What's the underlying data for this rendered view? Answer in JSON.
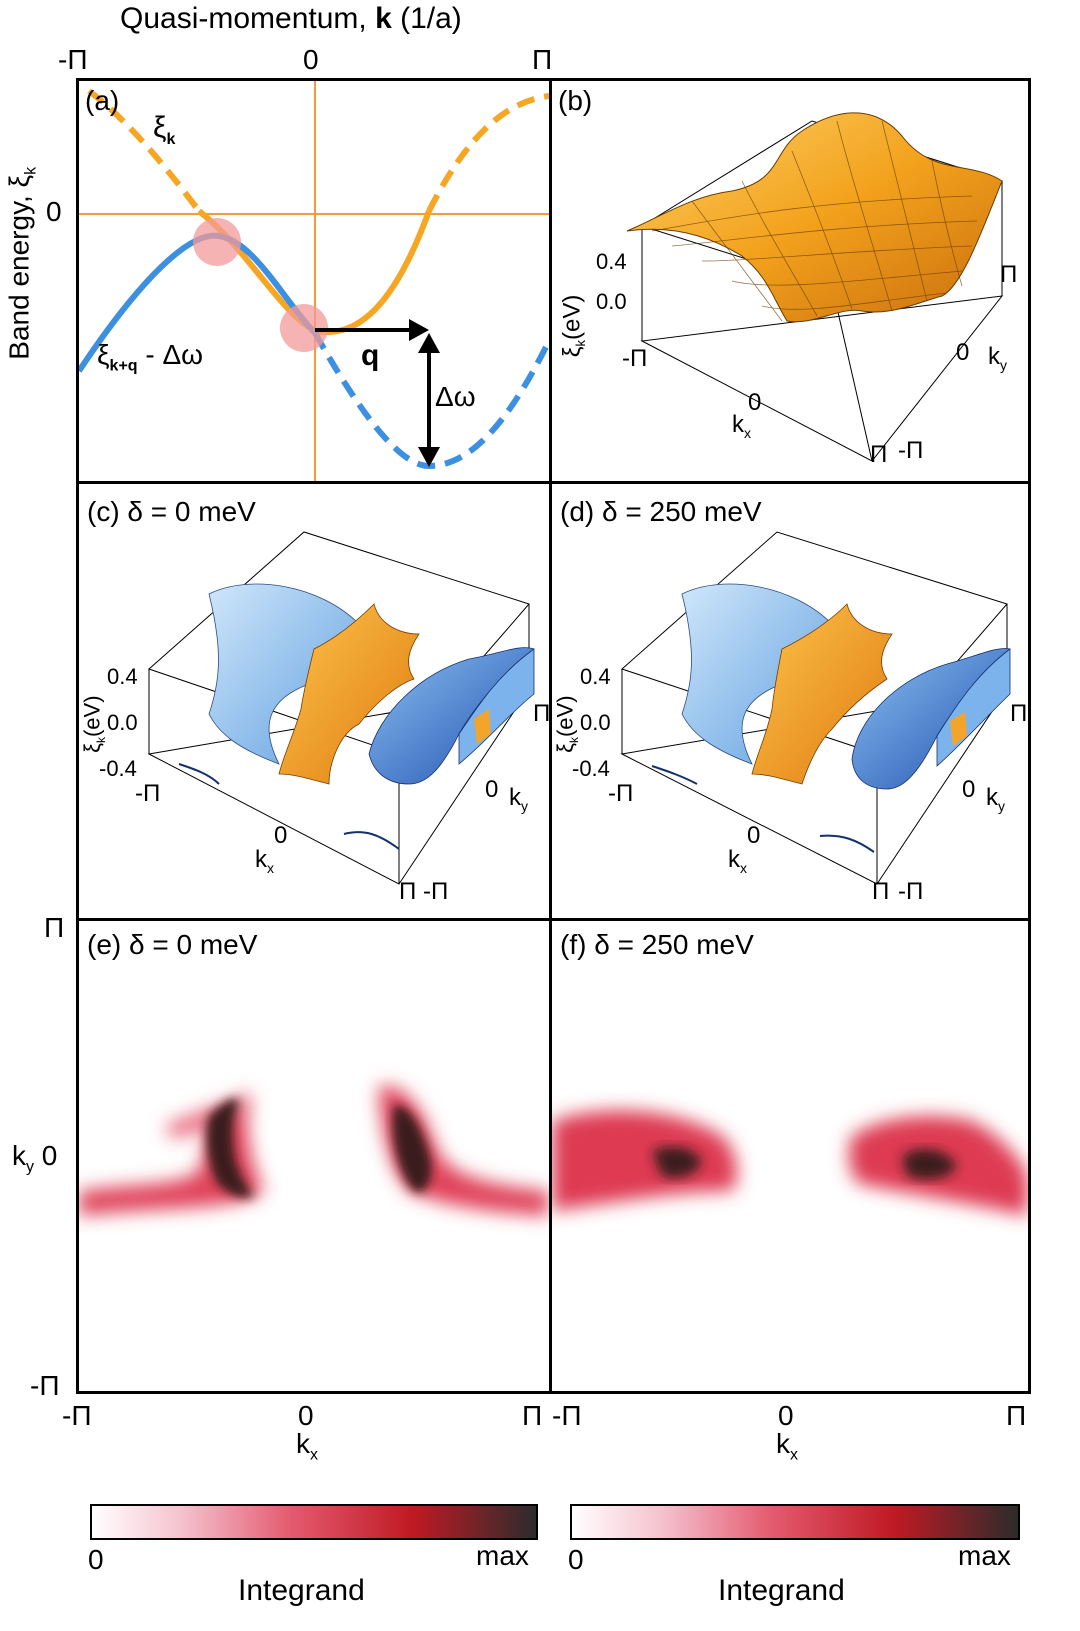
{
  "top_axis": {
    "label_pre": "Quasi-momentum, ",
    "label_bold": "k",
    "label_post": " (1/a)",
    "ticks": [
      "-Π",
      "0",
      "Π"
    ]
  },
  "panel_a": {
    "tag": "(a)",
    "ylabel": "Band energy, ξ",
    "ylabel_sub": "k",
    "ytick": "0",
    "curve1_label": "ξ",
    "curve1_sub": "k",
    "curve2_label": "ξ",
    "curve2_sub": "k+q",
    "curve2_suffix": " - Δω",
    "arrow_q": "q",
    "arrow_dw": "Δω",
    "color_orange": "#f6a623",
    "color_blue": "#3d8fe0",
    "color_axis": "#f39c3a",
    "color_circle": "#f39a9a"
  },
  "panel_b": {
    "tag": "(b)",
    "zlabel": "ξ",
    "zsub": "k",
    "zunit": "(eV)",
    "zticks": [
      "0.4",
      "0.0"
    ],
    "kx_ticks": [
      "-Π",
      "0",
      "Π"
    ],
    "ky_ticks": [
      "Π",
      "0",
      "-Π"
    ],
    "kx_label": "k",
    "kx_sub": "x",
    "ky_label": "k",
    "ky_sub": "y"
  },
  "panel_c": {
    "tag": "(c) δ = 0 meV",
    "zticks": [
      "0.4",
      "0.0",
      "-0.4"
    ],
    "zlabel": "ξ",
    "zsub": "k",
    "zunit": "(eV)",
    "kx_ticks": [
      "-Π",
      "0",
      "Π"
    ],
    "ky_ticks": [
      "Π",
      "0",
      "-Π"
    ]
  },
  "panel_d": {
    "tag": "(d) δ = 250 meV",
    "zticks": [
      "0.4",
      "0.0",
      "-0.4"
    ],
    "zlabel": "ξ",
    "zsub": "k",
    "zunit": "(eV)",
    "kx_ticks": [
      "-Π",
      "0",
      "Π"
    ],
    "ky_ticks": [
      "Π",
      "0",
      "-Π"
    ]
  },
  "panel_e": {
    "tag": "(e) δ = 0 meV"
  },
  "panel_f": {
    "tag": "(f) δ = 250 meV"
  },
  "bottom_axis": {
    "ky_ticks": [
      "Π",
      "0",
      "-Π"
    ],
    "ky_label": "k",
    "ky_sub": "y",
    "kx_ticks_left": [
      "-Π",
      "0",
      "Π"
    ],
    "kx_ticks_right": [
      "-Π",
      "0",
      "Π"
    ],
    "kx_label": "k",
    "kx_sub": "x"
  },
  "colorbars": [
    {
      "min": "0",
      "max": "max",
      "label": "Integrand"
    },
    {
      "min": "0",
      "max": "max",
      "label": "Integrand"
    }
  ],
  "colorscale": [
    "#ffffff",
    "#f3b7c6",
    "#dd3a4e",
    "#b3141f",
    "#2b2b2b"
  ]
}
